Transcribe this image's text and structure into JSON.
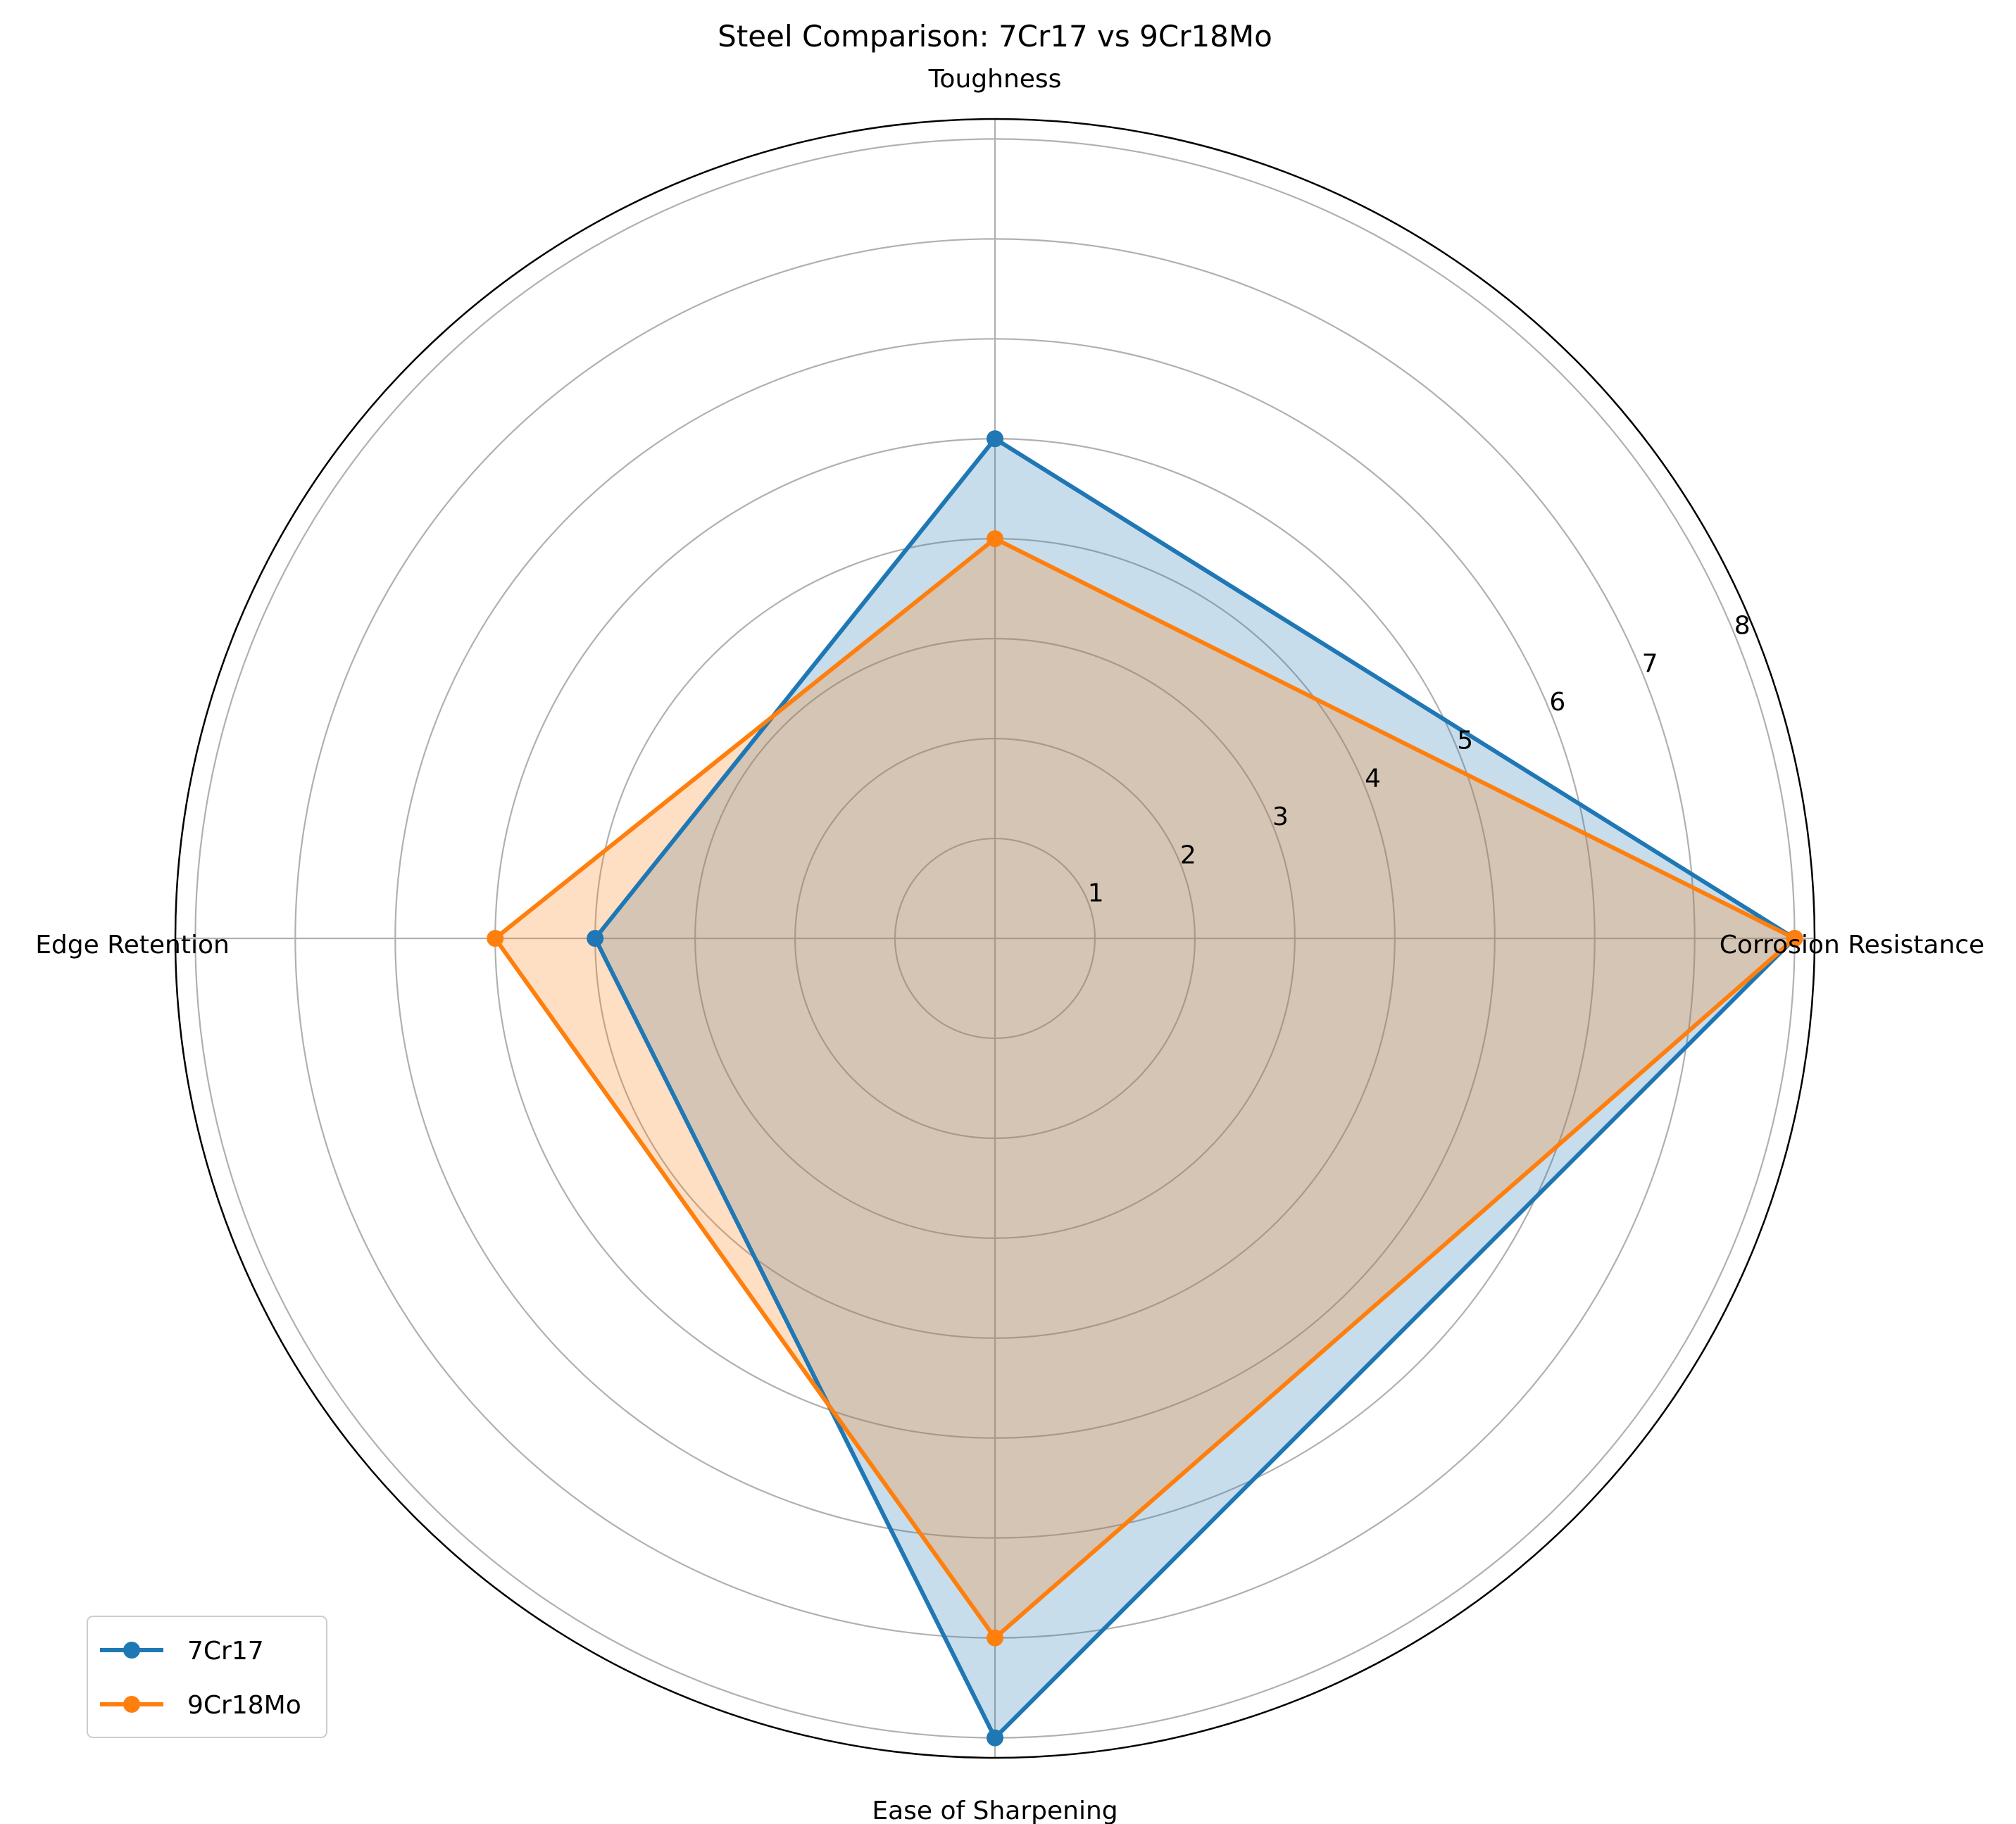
{
  "chart_data": {
    "type": "radar",
    "title": "Steel Comparison: 7Cr17 vs 9Cr18Mo",
    "categories": [
      "Corrosion Resistance",
      "Toughness",
      "Edge Retention",
      "Ease of Sharpening"
    ],
    "series": [
      {
        "name": "7Cr17",
        "values": [
          8,
          5,
          4,
          8
        ],
        "color": "#1f77b4"
      },
      {
        "name": "9Cr18Mo",
        "values": [
          8,
          4,
          5,
          7
        ],
        "color": "#ff7f0e"
      }
    ],
    "rlim": [
      0,
      8.2
    ],
    "r_ticks": [
      1,
      2,
      3,
      4,
      5,
      6,
      7,
      8
    ],
    "r_tick_labels": [
      "1",
      "2",
      "3",
      "4",
      "5",
      "6",
      "7",
      "8"
    ],
    "grid": true,
    "legend_position": "lower-left"
  }
}
